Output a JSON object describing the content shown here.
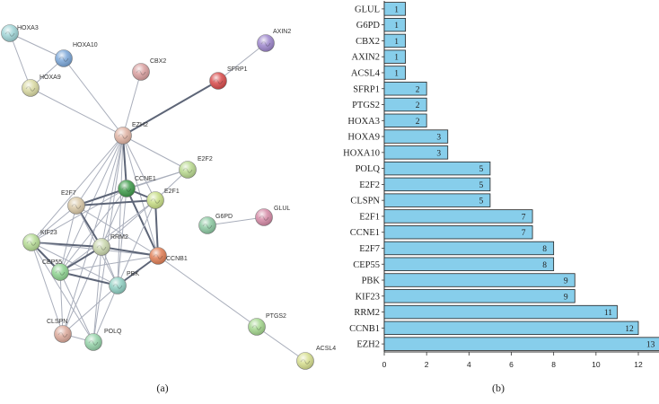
{
  "panels": {
    "a_label": "(a)",
    "b_label": "(b)"
  },
  "network": {
    "nodes": [
      {
        "id": "HOXA3",
        "color": "#9fd4d6"
      },
      {
        "id": "HOXA10",
        "color": "#7aa6d8"
      },
      {
        "id": "HOXA9",
        "color": "#d9d9a2"
      },
      {
        "id": "AXIN2",
        "color": "#9d86cc"
      },
      {
        "id": "CBX2",
        "color": "#d99f9f"
      },
      {
        "id": "SFRP1",
        "color": "#d84b4b"
      },
      {
        "id": "EZH2",
        "color": "#e0b3a3"
      },
      {
        "id": "E2F2",
        "color": "#b9d98f"
      },
      {
        "id": "CCNE1",
        "color": "#3e9a4a"
      },
      {
        "id": "E2F7",
        "color": "#d9c8a6"
      },
      {
        "id": "E2F1",
        "color": "#c8de86"
      },
      {
        "id": "G6PD",
        "color": "#8cc9a2"
      },
      {
        "id": "GLUL",
        "color": "#d58aa6"
      },
      {
        "id": "KIF23",
        "color": "#b6dc95"
      },
      {
        "id": "RRM2",
        "color": "#c9d6ac"
      },
      {
        "id": "CCNB1",
        "color": "#e07e55"
      },
      {
        "id": "CEP55",
        "color": "#8ed390"
      },
      {
        "id": "PBK",
        "color": "#8fcfc2"
      },
      {
        "id": "CLSPN",
        "color": "#dca99a"
      },
      {
        "id": "POLQ",
        "color": "#95d3a9"
      },
      {
        "id": "PTGS2",
        "color": "#a4d78e"
      },
      {
        "id": "ACSL4",
        "color": "#d7df8f"
      }
    ],
    "edges": [
      [
        "HOXA3",
        "HOXA10"
      ],
      [
        "HOXA3",
        "HOXA9"
      ],
      [
        "HOXA10",
        "HOXA9"
      ],
      [
        "HOXA10",
        "EZH2"
      ],
      [
        "HOXA9",
        "EZH2"
      ],
      [
        "AXIN2",
        "SFRP1"
      ],
      [
        "SFRP1",
        "EZH2"
      ],
      [
        "CBX2",
        "EZH2"
      ],
      [
        "EZH2",
        "E2F2"
      ],
      [
        "EZH2",
        "CCNE1"
      ],
      [
        "EZH2",
        "E2F7"
      ],
      [
        "EZH2",
        "E2F1"
      ],
      [
        "EZH2",
        "KIF23"
      ],
      [
        "EZH2",
        "RRM2"
      ],
      [
        "EZH2",
        "CCNB1"
      ],
      [
        "EZH2",
        "CEP55"
      ],
      [
        "EZH2",
        "PBK"
      ],
      [
        "EZH2",
        "CLSPN"
      ],
      [
        "EZH2",
        "POLQ"
      ],
      [
        "E2F2",
        "CCNE1"
      ],
      [
        "E2F2",
        "E2F1"
      ],
      [
        "E2F2",
        "E2F7"
      ],
      [
        "CCNE1",
        "E2F1"
      ],
      [
        "CCNE1",
        "E2F7"
      ],
      [
        "CCNE1",
        "RRM2"
      ],
      [
        "CCNE1",
        "CCNB1"
      ],
      [
        "CCNE1",
        "KIF23"
      ],
      [
        "CCNE1",
        "CEP55"
      ],
      [
        "CCNE1",
        "PBK"
      ],
      [
        "E2F1",
        "E2F7"
      ],
      [
        "E2F1",
        "RRM2"
      ],
      [
        "E2F1",
        "CCNB1"
      ],
      [
        "E2F1",
        "PBK"
      ],
      [
        "E2F1",
        "CEP55"
      ],
      [
        "E2F7",
        "RRM2"
      ],
      [
        "E2F7",
        "KIF23"
      ],
      [
        "E2F7",
        "CCNB1"
      ],
      [
        "E2F7",
        "CEP55"
      ],
      [
        "E2F7",
        "PBK"
      ],
      [
        "KIF23",
        "RRM2"
      ],
      [
        "KIF23",
        "CCNB1"
      ],
      [
        "KIF23",
        "CEP55"
      ],
      [
        "KIF23",
        "PBK"
      ],
      [
        "KIF23",
        "CLSPN"
      ],
      [
        "KIF23",
        "POLQ"
      ],
      [
        "RRM2",
        "CCNB1"
      ],
      [
        "RRM2",
        "CEP55"
      ],
      [
        "RRM2",
        "PBK"
      ],
      [
        "RRM2",
        "CLSPN"
      ],
      [
        "RRM2",
        "POLQ"
      ],
      [
        "CCNB1",
        "CEP55"
      ],
      [
        "CCNB1",
        "PBK"
      ],
      [
        "CCNB1",
        "PTGS2"
      ],
      [
        "CEP55",
        "PBK"
      ],
      [
        "CEP55",
        "CLSPN"
      ],
      [
        "CEP55",
        "POLQ"
      ],
      [
        "PBK",
        "CLSPN"
      ],
      [
        "PBK",
        "POLQ"
      ],
      [
        "CLSPN",
        "POLQ"
      ],
      [
        "G6PD",
        "GLUL"
      ],
      [
        "PTGS2",
        "ACSL4"
      ]
    ]
  },
  "chart_data": {
    "type": "bar",
    "orientation": "horizontal",
    "categories": [
      "GLUL",
      "G6PD",
      "CBX2",
      "AXIN2",
      "ACSL4",
      "SFRP1",
      "PTGS2",
      "HOXA3",
      "HOXA9",
      "HOXA10",
      "POLQ",
      "E2F2",
      "CLSPN",
      "E2F1",
      "CCNE1",
      "E2F7",
      "CEP55",
      "PBK",
      "KIF23",
      "RRM2",
      "CCNB1",
      "EZH2"
    ],
    "values": [
      1,
      1,
      1,
      1,
      1,
      2,
      2,
      2,
      3,
      3,
      5,
      5,
      5,
      7,
      7,
      8,
      8,
      9,
      9,
      11,
      12,
      13
    ],
    "xlim": [
      0,
      13
    ],
    "xticks": [
      "0",
      "2",
      "4",
      "6",
      "8",
      "10",
      "12"
    ],
    "bar_color": "#87ceeb",
    "title": "",
    "xlabel": "",
    "ylabel": ""
  }
}
